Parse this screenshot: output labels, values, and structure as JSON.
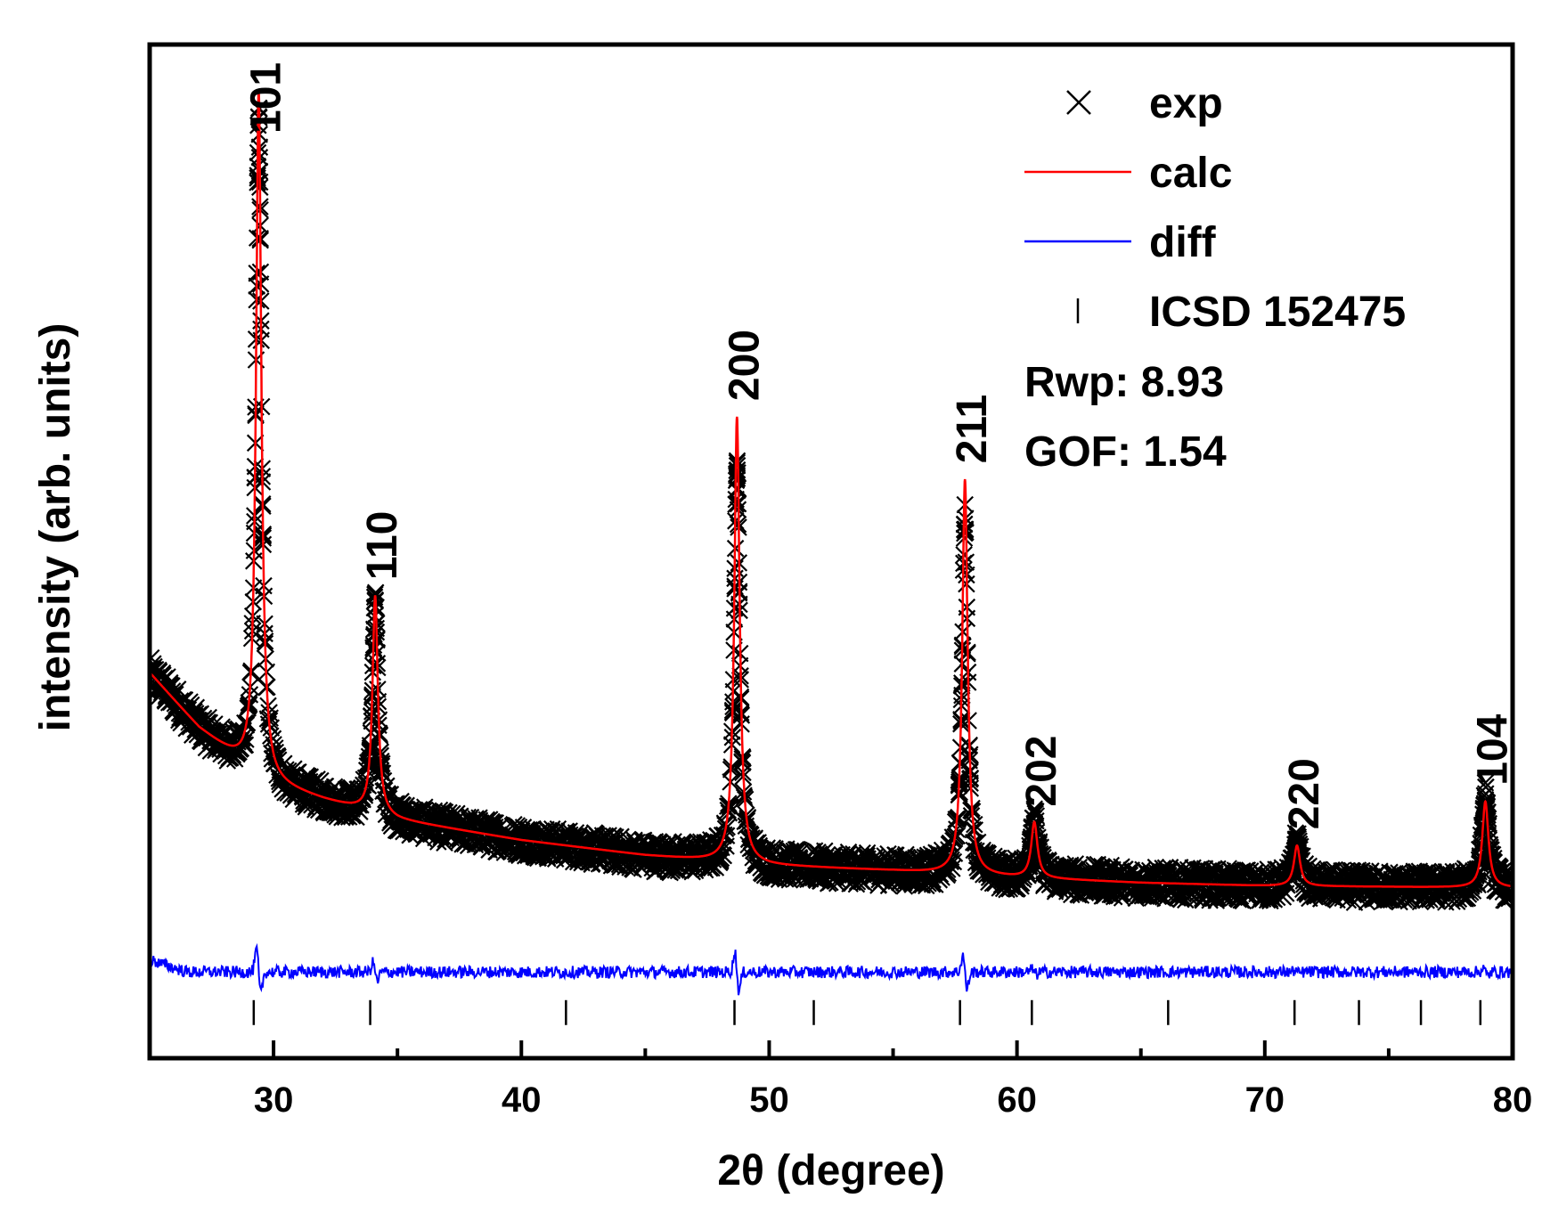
{
  "chart_data": {
    "type": "scatter",
    "title": "",
    "xlabel": "2θ (degree)",
    "ylabel": "intensity (arb. units)",
    "xlim": [
      25,
      80
    ],
    "ylim": [
      0,
      100
    ],
    "xticks": [
      30,
      40,
      50,
      60,
      70,
      80
    ],
    "yticks_visible": false,
    "legend_position": "top-right",
    "colors": {
      "exp": "#000000",
      "calc": "#ff0000",
      "diff": "#0000ff",
      "ref": "#000000"
    },
    "legend": [
      {
        "key": "exp",
        "label": "exp",
        "symbol": "cross"
      },
      {
        "key": "calc",
        "label": "calc",
        "symbol": "line"
      },
      {
        "key": "diff",
        "label": "diff",
        "symbol": "line"
      },
      {
        "key": "ref",
        "label": "ICSD 152475",
        "symbol": "tick"
      }
    ],
    "stats": [
      "Rwp: 8.93",
      "GOF: 1.54"
    ],
    "background": {
      "x": [
        25,
        27,
        29,
        30,
        32,
        35,
        40,
        45,
        50,
        55,
        60,
        65,
        70,
        75,
        80
      ],
      "y": [
        38,
        32.5,
        28.5,
        27,
        25.5,
        23.5,
        21.5,
        20,
        19,
        18.5,
        17.8,
        17.3,
        17,
        16.9,
        16.8
      ]
    },
    "peaks": [
      {
        "hkl": "101",
        "two_theta": 29.4,
        "calc_height": 67.5,
        "exp_height": 66,
        "width": 0.13
      },
      {
        "hkl": "110",
        "two_theta": 34.1,
        "calc_height": 21.5,
        "exp_height": 21,
        "width": 0.13
      },
      {
        "hkl": "200",
        "two_theta": 48.7,
        "calc_height": 44,
        "exp_height": 39,
        "width": 0.13
      },
      {
        "hkl": "211",
        "two_theta": 57.9,
        "calc_height": 39,
        "exp_height": 35,
        "width": 0.13
      },
      {
        "hkl": "202",
        "two_theta": 60.7,
        "calc_height": 5.5,
        "exp_height": 6,
        "width": 0.15
      },
      {
        "hkl": "220",
        "two_theta": 71.3,
        "calc_height": 4,
        "exp_height": 4.5,
        "width": 0.15
      },
      {
        "hkl": "104",
        "two_theta": 78.9,
        "calc_height": 8.5,
        "exp_height": 9,
        "width": 0.15
      }
    ],
    "diff_baseline": 8.5,
    "ref_ticks": [
      29.2,
      33.9,
      41.8,
      48.6,
      51.8,
      57.7,
      60.6,
      66.1,
      71.2,
      73.8,
      76.3,
      78.7
    ],
    "ref_tick_level": 4.5
  }
}
